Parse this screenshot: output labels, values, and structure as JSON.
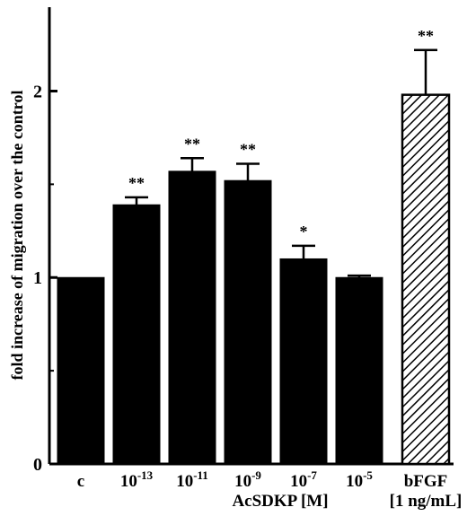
{
  "chart_data": {
    "type": "bar",
    "title": "",
    "ylabel": "fold increase of migration over the control",
    "ylim": [
      0,
      2.45
    ],
    "yticks": [
      "0",
      "1",
      "2"
    ],
    "categories": [
      {
        "base": "c",
        "sup": ""
      },
      {
        "base": "10",
        "sup": "-13"
      },
      {
        "base": "10",
        "sup": "-11"
      },
      {
        "base": "10",
        "sup": "-9"
      },
      {
        "base": "10",
        "sup": "-7"
      },
      {
        "base": "10",
        "sup": "-5"
      },
      {
        "base": "bFGF",
        "sup": ""
      }
    ],
    "values": [
      1.0,
      1.39,
      1.57,
      1.52,
      1.1,
      1.0,
      1.98
    ],
    "errors": [
      0.0,
      0.04,
      0.07,
      0.09,
      0.07,
      0.01,
      0.24
    ],
    "significance": [
      "",
      "**",
      "**",
      "**",
      "*",
      "",
      "**"
    ],
    "fills": [
      "solid",
      "solid",
      "solid",
      "solid",
      "solid",
      "solid",
      "hatched"
    ],
    "group_label": "AcSDKP [M]",
    "extra_label": "[1 ng/mL]",
    "colors": {
      "bar": "#000000",
      "hatch": "#000000",
      "background": "#ffffff"
    }
  }
}
